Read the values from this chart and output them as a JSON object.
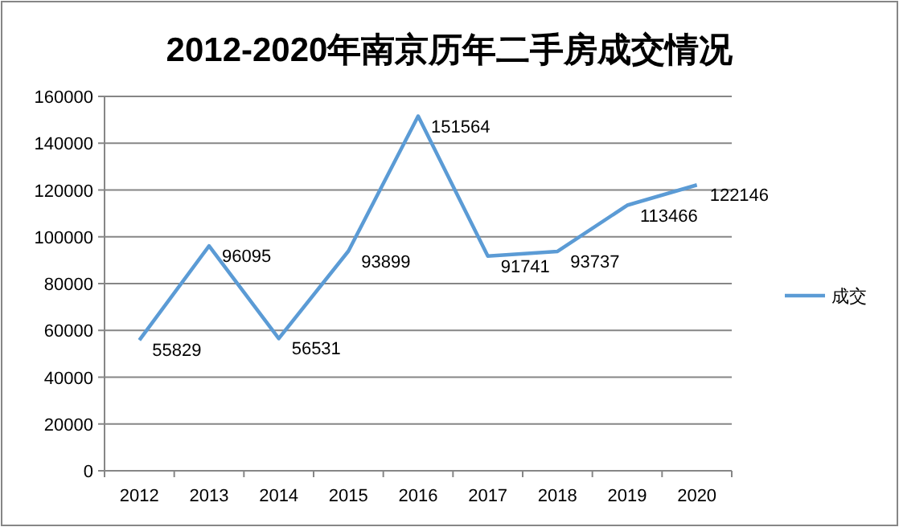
{
  "chart_data": {
    "type": "line",
    "title": "2012-2020年南京历年二手房成交情况",
    "categories": [
      "2012",
      "2013",
      "2014",
      "2015",
      "2016",
      "2017",
      "2018",
      "2019",
      "2020"
    ],
    "series": [
      {
        "name": "成交",
        "color": "#5b9bd5",
        "values": [
          55829,
          96095,
          56531,
          93899,
          151564,
          91741,
          93737,
          113466,
          122146
        ]
      }
    ],
    "ylim": [
      0,
      160000
    ],
    "yticks": [
      0,
      20000,
      40000,
      60000,
      80000,
      100000,
      120000,
      140000,
      160000
    ],
    "grid": "y",
    "legend": "right",
    "data_labels": true,
    "marker": "none",
    "line_style": "solid"
  }
}
